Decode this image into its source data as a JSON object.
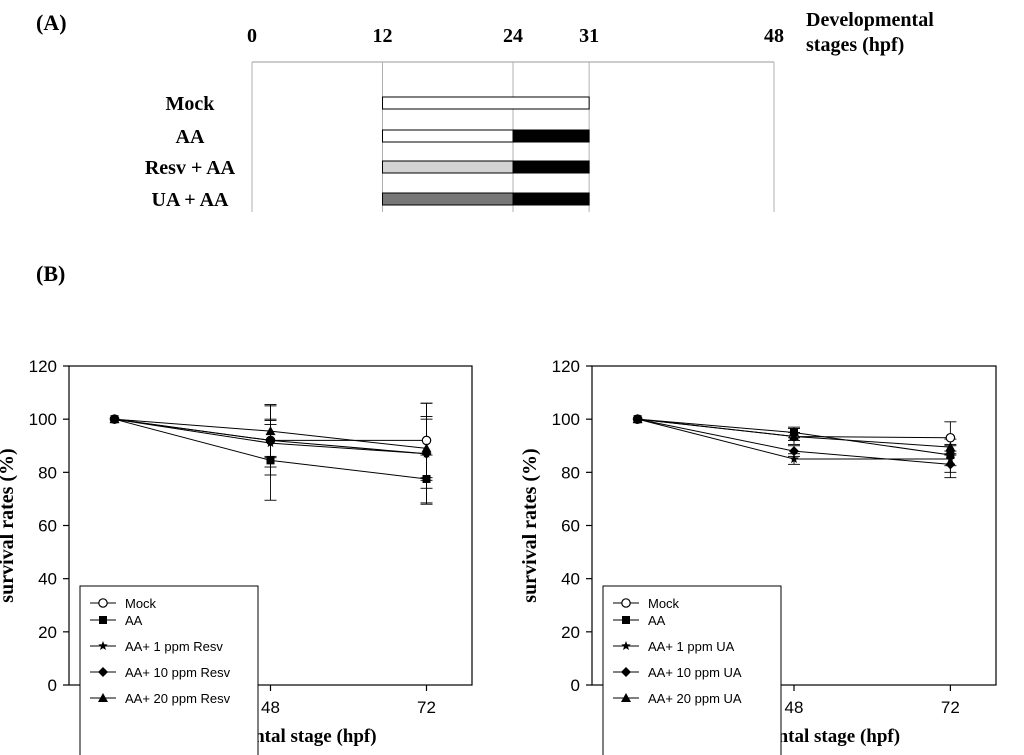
{
  "panel_a": {
    "label": "(A)",
    "axis_title_lines": [
      "Developmental",
      "stages (hpf)"
    ],
    "ticks": [
      0,
      12,
      24,
      31,
      48
    ],
    "colors": {
      "none": "#ffffff",
      "aa": "#000000",
      "resv": "#d3d3d3",
      "ua": "#777777"
    },
    "treatments": [
      {
        "label": "Mock",
        "segments": [
          {
            "from": 12,
            "to": 31,
            "fill": "none"
          }
        ]
      },
      {
        "label": "AA",
        "segments": [
          {
            "from": 12,
            "to": 24,
            "fill": "none"
          },
          {
            "from": 24,
            "to": 31,
            "fill": "aa"
          }
        ]
      },
      {
        "label": "Resv + AA",
        "segments": [
          {
            "from": 12,
            "to": 24,
            "fill": "resv"
          },
          {
            "from": 24,
            "to": 31,
            "fill": "aa"
          }
        ]
      },
      {
        "label": "UA + AA",
        "segments": [
          {
            "from": 12,
            "to": 24,
            "fill": "ua"
          },
          {
            "from": 24,
            "to": 31,
            "fill": "aa"
          }
        ]
      }
    ]
  },
  "panel_b": {
    "label": "(B)"
  },
  "chart_data": [
    {
      "type": "line",
      "xlabel": "Developmental stage (hpf)",
      "ylabel": "survival rates (%)",
      "x": [
        24,
        48,
        72
      ],
      "ylim": [
        0,
        120
      ],
      "yticks": [
        0,
        20,
        40,
        60,
        80,
        100,
        120
      ],
      "legend": "bottom-left",
      "series": [
        {
          "name": "Mock",
          "marker": "circle-open",
          "values": [
            100,
            92,
            92
          ],
          "errors": [
            0,
            6,
            14
          ]
        },
        {
          "name": "AA",
          "marker": "square",
          "values": [
            100,
            84.5,
            77.5
          ],
          "errors": [
            0,
            15,
            9
          ]
        },
        {
          "name": "AA+ 1 ppm Resv",
          "marker": "star",
          "values": [
            100,
            91,
            87
          ],
          "errors": [
            0,
            9,
            19
          ]
        },
        {
          "name": "AA+ 10 ppm Resv",
          "marker": "diamond",
          "values": [
            100,
            92,
            87
          ],
          "errors": [
            0,
            13,
            13
          ]
        },
        {
          "name": "AA+ 20 ppm Resv",
          "marker": "triangle",
          "values": [
            100,
            95.5,
            89
          ],
          "errors": [
            0,
            10,
            12
          ]
        }
      ]
    },
    {
      "type": "line",
      "xlabel": "Developmental stage (hpf)",
      "ylabel": "survival rates (%)",
      "x": [
        24,
        48,
        72
      ],
      "ylim": [
        0,
        120
      ],
      "yticks": [
        0,
        20,
        40,
        60,
        80,
        100,
        120
      ],
      "legend": "bottom-left",
      "series": [
        {
          "name": "Mock",
          "marker": "circle-open",
          "values": [
            100,
            93.5,
            93
          ],
          "errors": [
            0,
            1.5,
            6
          ]
        },
        {
          "name": "AA",
          "marker": "square",
          "values": [
            100,
            95,
            86.5
          ],
          "errors": [
            0,
            2,
            4
          ]
        },
        {
          "name": "AA+ 1 ppm UA",
          "marker": "star",
          "values": [
            100,
            85,
            85
          ],
          "errors": [
            0,
            2,
            5
          ]
        },
        {
          "name": "AA+ 10 ppm UA",
          "marker": "diamond",
          "values": [
            100,
            88,
            83
          ],
          "errors": [
            0,
            2,
            5
          ]
        },
        {
          "name": "AA+ 20 ppm UA",
          "marker": "triangle",
          "values": [
            100,
            93.5,
            89.5
          ],
          "errors": [
            0,
            3,
            3
          ]
        }
      ]
    }
  ]
}
